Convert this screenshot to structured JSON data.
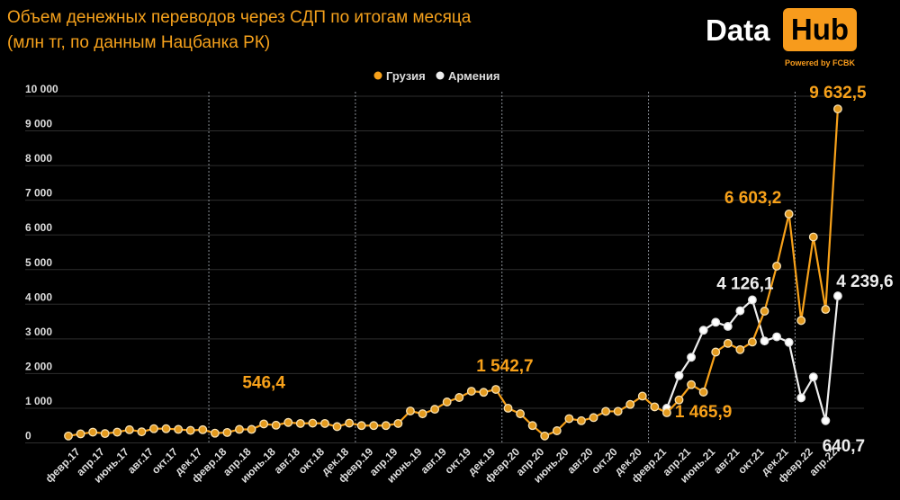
{
  "title_line1": "Объем денежных переводов через СДП по итогам месяца",
  "title_line2": "(млн тг, по данным Нацбанка РК)",
  "logo": {
    "left": "Data",
    "right": "Hub",
    "powered": "Powered by FCBK"
  },
  "colors": {
    "georgia": "#f7a11a",
    "armenia": "#eeeeee",
    "grid": "#2e2e2e",
    "background": "#000000"
  },
  "chart_data": {
    "type": "line",
    "title": "Объем денежных переводов через СДП по итогам месяца (млн тг, по данным Нацбанка РК)",
    "xlabel": "",
    "ylabel": "",
    "ylim": [
      0,
      10000
    ],
    "yticks": [
      0,
      1000,
      2000,
      3000,
      4000,
      5000,
      6000,
      7000,
      8000,
      9000,
      10000
    ],
    "ytick_labels": [
      "0",
      "1 000",
      "2 000",
      "3 000",
      "4 000",
      "5 000",
      "6 000",
      "7 000",
      "8 000",
      "9 000",
      "10 000"
    ],
    "x_start": "янв.17",
    "x_end": "апр.22",
    "xtick_labels": [
      {
        "index": 1,
        "label": "февр.17"
      },
      {
        "index": 3,
        "label": "апр.17"
      },
      {
        "index": 5,
        "label": "июнь.17"
      },
      {
        "index": 7,
        "label": "авг.17"
      },
      {
        "index": 9,
        "label": "окт.17"
      },
      {
        "index": 11,
        "label": "дек.17"
      },
      {
        "index": 13,
        "label": "февр.18"
      },
      {
        "index": 15,
        "label": "апр.18"
      },
      {
        "index": 17,
        "label": "июнь.18"
      },
      {
        "index": 19,
        "label": "авг.18"
      },
      {
        "index": 21,
        "label": "окт.18"
      },
      {
        "index": 23,
        "label": "дек.18"
      },
      {
        "index": 25,
        "label": "февр.19"
      },
      {
        "index": 27,
        "label": "апр.19"
      },
      {
        "index": 29,
        "label": "июнь.19"
      },
      {
        "index": 31,
        "label": "авг.19"
      },
      {
        "index": 33,
        "label": "окт.19"
      },
      {
        "index": 35,
        "label": "дек.19"
      },
      {
        "index": 37,
        "label": "февр.20"
      },
      {
        "index": 39,
        "label": "апр.20"
      },
      {
        "index": 41,
        "label": "июнь.20"
      },
      {
        "index": 43,
        "label": "авг.20"
      },
      {
        "index": 45,
        "label": "окт.20"
      },
      {
        "index": 47,
        "label": "дек.20"
      },
      {
        "index": 49,
        "label": "февр.21"
      },
      {
        "index": 51,
        "label": "апр.21"
      },
      {
        "index": 53,
        "label": "июнь.21"
      },
      {
        "index": 55,
        "label": "авг.21"
      },
      {
        "index": 57,
        "label": "окт.21"
      },
      {
        "index": 59,
        "label": "дек.21"
      },
      {
        "index": 61,
        "label": "февр.22"
      },
      {
        "index": 63,
        "label": "апр.22"
      }
    ],
    "legend": [
      "Грузия",
      "Армения"
    ],
    "legend_position": "top-center",
    "grid": true,
    "year_separators": true,
    "series": [
      {
        "name": "Грузия",
        "start_index": 0,
        "values": [
          200,
          260,
          310,
          270,
          310,
          380,
          320,
          410,
          410,
          390,
          360,
          380,
          280,
          300,
          390,
          390,
          546.4,
          510,
          590,
          560,
          570,
          560,
          470,
          570,
          500,
          500,
          500,
          560,
          920,
          840,
          970,
          1180,
          1310,
          1490,
          1460,
          1542.7,
          1000,
          840,
          500,
          200,
          350,
          700,
          640,
          730,
          910,
          910,
          1110,
          1350,
          1040,
          870,
          1240,
          1680,
          1465.9,
          2620,
          2870,
          2690,
          2910,
          3800,
          5100,
          6603.2,
          3530,
          5940,
          3850,
          9632.5
        ]
      },
      {
        "name": "Армения",
        "start_index": 49,
        "values": [
          1000,
          1940,
          2470,
          3250,
          3480,
          3360,
          3810,
          4126.1,
          2940,
          3060,
          2900,
          1300,
          1900,
          640.7,
          4239.6
        ]
      }
    ],
    "annotations": [
      {
        "series": 0,
        "index": 16,
        "text": "546,4"
      },
      {
        "series": 0,
        "index": 35,
        "text": "1 542,7"
      },
      {
        "series": 0,
        "index": 52,
        "text": "1 465,9"
      },
      {
        "series": 0,
        "index": 59,
        "text": "6 603,2"
      },
      {
        "series": 0,
        "index": 63,
        "text": "9 632,5"
      },
      {
        "series": 1,
        "index": 56,
        "text": "4 126,1"
      },
      {
        "series": 1,
        "index": 63,
        "text": "4 239,6"
      },
      {
        "series": 1,
        "index": 62,
        "text": "640,7"
      }
    ]
  }
}
